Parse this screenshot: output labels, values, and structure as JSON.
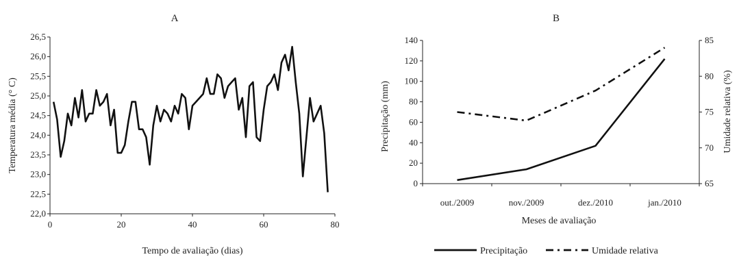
{
  "chart_data": [
    {
      "type": "line",
      "title": "A",
      "xlabel": "Tempo de avaliação (dias)",
      "ylabel": "Temperatura média (° C)",
      "xlim": [
        0,
        80
      ],
      "ylim": [
        22.0,
        26.5
      ],
      "xticks": [
        0,
        20,
        40,
        60,
        80
      ],
      "xtick_labels": [
        "0",
        "20",
        "40",
        "60",
        "80"
      ],
      "yticks": [
        22.0,
        22.5,
        23.0,
        23.5,
        24.0,
        24.5,
        25.0,
        25.5,
        26.0,
        26.5
      ],
      "ytick_labels": [
        "22,0",
        "22,5",
        "23,0",
        "23,5",
        "24,0",
        "24,5",
        "25,0",
        "25,5",
        "26,0",
        "26,5"
      ],
      "grid": false,
      "series": [
        {
          "color": "#111111",
          "x": [
            1,
            2,
            3,
            4,
            5,
            6,
            7,
            8,
            9,
            10,
            11,
            12,
            13,
            14,
            15,
            16,
            17,
            18,
            19,
            20,
            21,
            22,
            23,
            24,
            25,
            26,
            27,
            28,
            29,
            30,
            31,
            32,
            33,
            34,
            35,
            36,
            37,
            38,
            39,
            40,
            41,
            42,
            43,
            44,
            45,
            46,
            47,
            48,
            49,
            50,
            51,
            52,
            53,
            54,
            55,
            56,
            57,
            58,
            59,
            60,
            61,
            62,
            63,
            64,
            65,
            66,
            67,
            68,
            69,
            70,
            71,
            72,
            73,
            74,
            75,
            76,
            77,
            78
          ],
          "y": [
            24.85,
            24.4,
            23.45,
            23.85,
            24.55,
            24.25,
            24.95,
            24.45,
            25.15,
            24.35,
            24.55,
            24.55,
            25.15,
            24.75,
            24.85,
            25.05,
            24.25,
            24.65,
            23.55,
            23.55,
            23.75,
            24.35,
            24.85,
            24.85,
            24.15,
            24.15,
            23.95,
            23.25,
            24.25,
            24.75,
            24.35,
            24.65,
            24.55,
            24.35,
            24.75,
            24.55,
            25.05,
            24.95,
            24.15,
            24.75,
            24.85,
            24.95,
            25.05,
            25.45,
            25.05,
            25.05,
            25.55,
            25.45,
            24.95,
            25.25,
            25.35,
            25.45,
            24.65,
            24.95,
            23.95,
            25.25,
            25.35,
            23.95,
            23.85,
            24.65,
            25.25,
            25.35,
            25.55,
            25.15,
            25.85,
            26.05,
            25.65,
            26.25,
            25.35,
            24.55,
            22.95,
            23.95,
            24.95,
            24.35,
            24.55,
            24.75,
            24.05,
            22.55
          ]
        }
      ]
    },
    {
      "type": "line",
      "title": "B",
      "categories": [
        "out./2009",
        "nov./2009",
        "dez./2010",
        "jan./2010"
      ],
      "xlabel": "Meses de avaliação",
      "ylabel": "Precipitação (mm)",
      "ylim": [
        0,
        140
      ],
      "yticks": [
        0,
        20,
        40,
        60,
        80,
        100,
        120,
        140
      ],
      "y2label": "Umidade relativa (%)",
      "y2lim": [
        65,
        85
      ],
      "y2ticks": [
        65,
        70,
        75,
        80,
        85
      ],
      "grid": false,
      "legend_position": "bottom",
      "series": [
        {
          "name": "Precipitação",
          "axis": "left",
          "style": "solid",
          "color": "#111111",
          "values": [
            3.5,
            14,
            37,
            122
          ]
        },
        {
          "name": "Umidade relativa",
          "axis": "right",
          "style": "dashdot",
          "color": "#111111",
          "values": [
            75.0,
            73.8,
            78.0,
            84.0
          ]
        }
      ]
    }
  ]
}
